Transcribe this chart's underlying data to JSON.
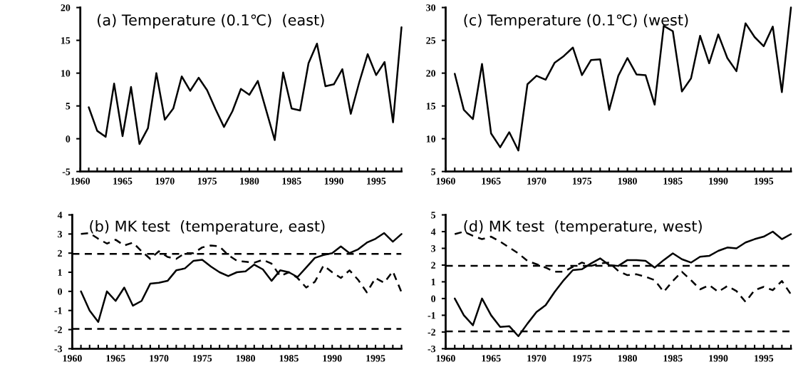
{
  "chart_data": [
    {
      "type": "line",
      "title": "(a) Temperature (0.1℃)  (east)",
      "x": [
        1961,
        1962,
        1963,
        1964,
        1965,
        1966,
        1967,
        1968,
        1969,
        1970,
        1971,
        1972,
        1973,
        1974,
        1975,
        1976,
        1977,
        1978,
        1979,
        1980,
        1981,
        1982,
        1983,
        1984,
        1985,
        1986,
        1987,
        1988,
        1989,
        1990,
        1991,
        1992,
        1993,
        1994,
        1995,
        1996,
        1997,
        1998
      ],
      "series": [
        {
          "color": "#000000",
          "line_style": "solid",
          "values": [
            4.8,
            1.2,
            0.3,
            8.4,
            0.4,
            7.9,
            -0.8,
            1.6,
            10,
            2.9,
            4.6,
            9.5,
            7.3,
            9.3,
            7.4,
            4.5,
            1.8,
            4.2,
            7.6,
            6.7,
            8.8,
            4.3,
            -0.2,
            10.1,
            4.6,
            4.3,
            11.5,
            14.5,
            8.0,
            8.3,
            10.6,
            3.8,
            8.6,
            12.9,
            9.7,
            11.7,
            2.5,
            17.0
          ]
        }
      ],
      "xlim": [
        1960,
        1998
      ],
      "xticks": [
        1960,
        {
          "value": 1961,
          "label": null
        },
        {
          "value": 1962,
          "label": null
        },
        {
          "value": 1963,
          "label": null
        },
        {
          "value": 1964,
          "label": null
        },
        1965,
        {
          "value": 1966,
          "label": null
        },
        {
          "value": 1967,
          "label": null
        },
        {
          "value": 1968,
          "label": null
        },
        {
          "value": 1969,
          "label": null
        },
        1970,
        {
          "value": 1971,
          "label": null
        },
        {
          "value": 1972,
          "label": null
        },
        {
          "value": 1973,
          "label": null
        },
        {
          "value": 1974,
          "label": null
        },
        1975,
        {
          "value": 1976,
          "label": null
        },
        {
          "value": 1977,
          "label": null
        },
        {
          "value": 1978,
          "label": null
        },
        {
          "value": 1979,
          "label": null
        },
        1980,
        {
          "value": 1981,
          "label": null
        },
        {
          "value": 1982,
          "label": null
        },
        {
          "value": 1983,
          "label": null
        },
        {
          "value": 1984,
          "label": null
        },
        1985,
        {
          "value": 1986,
          "label": null
        },
        {
          "value": 1987,
          "label": null
        },
        {
          "value": 1988,
          "label": null
        },
        {
          "value": 1989,
          "label": null
        },
        1990,
        {
          "value": 1991,
          "label": null
        },
        {
          "value": 1992,
          "label": null
        },
        {
          "value": 1993,
          "label": null
        },
        {
          "value": 1994,
          "label": null
        },
        1995,
        {
          "value": 1996,
          "label": null
        },
        {
          "value": 1997,
          "label": null
        },
        {
          "value": 1998,
          "label": null
        }
      ],
      "ylim": [
        -5,
        20
      ],
      "yticks": [
        -5,
        0,
        5,
        10,
        15,
        20
      ],
      "grid": false,
      "legend": false,
      "marker": "none"
    },
    {
      "type": "line",
      "title": "(c) Temperature (0.1℃) (west)",
      "x": [
        1961,
        1962,
        1963,
        1964,
        1965,
        1966,
        1967,
        1968,
        1969,
        1970,
        1971,
        1972,
        1973,
        1974,
        1975,
        1976,
        1977,
        1978,
        1979,
        1980,
        1981,
        1982,
        1983,
        1984,
        1985,
        1986,
        1987,
        1988,
        1989,
        1990,
        1991,
        1992,
        1993,
        1994,
        1995,
        1996,
        1997,
        1998
      ],
      "series": [
        {
          "color": "#000000",
          "line_style": "solid",
          "values": [
            19.9,
            14.4,
            13.0,
            21.4,
            10.8,
            8.7,
            11.0,
            8.2,
            18.3,
            19.6,
            19.0,
            21.6,
            22.6,
            23.9,
            19.7,
            22.0,
            22.1,
            14.4,
            19.6,
            22.3,
            19.8,
            19.7,
            15.2,
            27.2,
            26.4,
            17.2,
            19.2,
            25.7,
            21.5,
            25.9,
            22.3,
            20.3,
            27.6,
            25.5,
            24.1,
            27.1,
            17.1,
            30.0
          ]
        }
      ],
      "xlim": [
        1960,
        1998
      ],
      "xticks": [
        1960,
        {
          "value": 1961,
          "label": null
        },
        {
          "value": 1962,
          "label": null
        },
        {
          "value": 1963,
          "label": null
        },
        {
          "value": 1964,
          "label": null
        },
        1965,
        {
          "value": 1966,
          "label": null
        },
        {
          "value": 1967,
          "label": null
        },
        {
          "value": 1968,
          "label": null
        },
        {
          "value": 1969,
          "label": null
        },
        1970,
        {
          "value": 1971,
          "label": null
        },
        {
          "value": 1972,
          "label": null
        },
        {
          "value": 1973,
          "label": null
        },
        {
          "value": 1974,
          "label": null
        },
        1975,
        {
          "value": 1976,
          "label": null
        },
        {
          "value": 1977,
          "label": null
        },
        {
          "value": 1978,
          "label": null
        },
        {
          "value": 1979,
          "label": null
        },
        1980,
        {
          "value": 1981,
          "label": null
        },
        {
          "value": 1982,
          "label": null
        },
        {
          "value": 1983,
          "label": null
        },
        {
          "value": 1984,
          "label": null
        },
        1985,
        {
          "value": 1986,
          "label": null
        },
        {
          "value": 1987,
          "label": null
        },
        {
          "value": 1988,
          "label": null
        },
        {
          "value": 1989,
          "label": null
        },
        1990,
        {
          "value": 1991,
          "label": null
        },
        {
          "value": 1992,
          "label": null
        },
        {
          "value": 1993,
          "label": null
        },
        {
          "value": 1994,
          "label": null
        },
        1995,
        {
          "value": 1996,
          "label": null
        },
        {
          "value": 1997,
          "label": null
        },
        {
          "value": 1998,
          "label": null
        }
      ],
      "ylim": [
        5,
        30
      ],
      "yticks": [
        5,
        10,
        15,
        20,
        25,
        30
      ],
      "grid": false,
      "legend": false,
      "marker": "none"
    },
    {
      "type": "line",
      "title": "(b) MK test  (temperature, east)",
      "x": [
        1961,
        1962,
        1963,
        1964,
        1965,
        1966,
        1967,
        1968,
        1969,
        1970,
        1971,
        1972,
        1973,
        1974,
        1975,
        1976,
        1977,
        1978,
        1979,
        1980,
        1981,
        1982,
        1983,
        1984,
        1985,
        1986,
        1987,
        1988,
        1989,
        1990,
        1991,
        1992,
        1993,
        1994,
        1995,
        1996,
        1997,
        1998
      ],
      "series": [
        {
          "color": "#000000",
          "line_style": "solid",
          "values": [
            0,
            -1.0,
            -1.6,
            0,
            -0.5,
            0.2,
            -0.75,
            -0.5,
            0.4,
            0.45,
            0.55,
            1.1,
            1.2,
            1.6,
            1.65,
            1.3,
            1.0,
            0.8,
            1.0,
            1.05,
            1.4,
            1.15,
            0.55,
            1.1,
            1.0,
            0.75,
            1.25,
            1.75,
            1.9,
            2.0,
            2.35,
            2.0,
            2.2,
            2.55,
            2.75,
            3.05,
            2.6,
            3.0
          ]
        },
        {
          "color": "#000000",
          "line_style": "dashed",
          "values": [
            3.0,
            3.05,
            2.75,
            2.5,
            2.7,
            2.4,
            2.55,
            2.1,
            1.7,
            2.1,
            1.8,
            1.7,
            2.0,
            2.0,
            2.3,
            2.4,
            2.35,
            1.9,
            1.6,
            1.55,
            1.5,
            1.65,
            1.45,
            0.8,
            1.0,
            0.7,
            0.2,
            0.5,
            1.35,
            1.0,
            0.7,
            1.1,
            0.6,
            -0.05,
            0.7,
            0.45,
            1.05,
            -0.05
          ]
        }
      ],
      "ref_lines": [
        {
          "axis": "y",
          "value": 1.96,
          "color": "#000000",
          "line_style": "dashed"
        },
        {
          "axis": "y",
          "value": -1.96,
          "color": "#000000",
          "line_style": "dashed"
        }
      ],
      "xlim": [
        1960,
        1998
      ],
      "xticks": [
        1960,
        {
          "value": 1961,
          "label": null
        },
        {
          "value": 1962,
          "label": null
        },
        {
          "value": 1963,
          "label": null
        },
        {
          "value": 1964,
          "label": null
        },
        1965,
        {
          "value": 1966,
          "label": null
        },
        {
          "value": 1967,
          "label": null
        },
        {
          "value": 1968,
          "label": null
        },
        {
          "value": 1969,
          "label": null
        },
        1970,
        {
          "value": 1971,
          "label": null
        },
        {
          "value": 1972,
          "label": null
        },
        {
          "value": 1973,
          "label": null
        },
        {
          "value": 1974,
          "label": null
        },
        1975,
        {
          "value": 1976,
          "label": null
        },
        {
          "value": 1977,
          "label": null
        },
        {
          "value": 1978,
          "label": null
        },
        {
          "value": 1979,
          "label": null
        },
        1980,
        {
          "value": 1981,
          "label": null
        },
        {
          "value": 1982,
          "label": null
        },
        {
          "value": 1983,
          "label": null
        },
        {
          "value": 1984,
          "label": null
        },
        1985,
        {
          "value": 1986,
          "label": null
        },
        {
          "value": 1987,
          "label": null
        },
        {
          "value": 1988,
          "label": null
        },
        {
          "value": 1989,
          "label": null
        },
        1990,
        {
          "value": 1991,
          "label": null
        },
        {
          "value": 1992,
          "label": null
        },
        {
          "value": 1993,
          "label": null
        },
        {
          "value": 1994,
          "label": null
        },
        1995,
        {
          "value": 1996,
          "label": null
        },
        {
          "value": 1997,
          "label": null
        },
        {
          "value": 1998,
          "label": null
        }
      ],
      "ylim": [
        -3,
        4
      ],
      "yticks": [
        -3,
        -2,
        -1,
        0,
        1,
        2,
        3,
        4
      ],
      "grid": false,
      "legend": false,
      "marker": "none"
    },
    {
      "type": "line",
      "title": "(d) MK test  (temperature, west)",
      "x": [
        1961,
        1962,
        1963,
        1964,
        1965,
        1966,
        1967,
        1968,
        1969,
        1970,
        1971,
        1972,
        1973,
        1974,
        1975,
        1976,
        1977,
        1978,
        1979,
        1980,
        1981,
        1982,
        1983,
        1984,
        1985,
        1986,
        1987,
        1988,
        1989,
        1990,
        1991,
        1992,
        1993,
        1994,
        1995,
        1996,
        1997,
        1998
      ],
      "series": [
        {
          "color": "#000000",
          "line_style": "solid",
          "values": [
            0,
            -1.0,
            -1.6,
            0,
            -1.0,
            -1.7,
            -1.65,
            -2.25,
            -1.5,
            -0.8,
            -0.4,
            0.4,
            1.1,
            1.7,
            1.75,
            2.1,
            2.4,
            2.0,
            1.95,
            2.3,
            2.3,
            2.25,
            1.85,
            2.3,
            2.7,
            2.35,
            2.15,
            2.5,
            2.55,
            2.85,
            3.05,
            3.0,
            3.35,
            3.55,
            3.7,
            4.0,
            3.55,
            3.85
          ]
        },
        {
          "color": "#000000",
          "line_style": "dashed",
          "values": [
            3.85,
            4.0,
            3.75,
            3.55,
            3.7,
            3.4,
            3.05,
            2.7,
            2.25,
            2.05,
            1.85,
            1.6,
            1.6,
            1.9,
            2.15,
            1.95,
            2.1,
            2.15,
            1.65,
            1.4,
            1.45,
            1.3,
            1.1,
            0.4,
            1.05,
            1.6,
            1.1,
            0.55,
            0.8,
            0.4,
            0.75,
            0.45,
            -0.2,
            0.5,
            0.7,
            0.5,
            1.05,
            0.25
          ]
        }
      ],
      "ref_lines": [
        {
          "axis": "y",
          "value": 1.96,
          "color": "#000000",
          "line_style": "dashed"
        },
        {
          "axis": "y",
          "value": -1.96,
          "color": "#000000",
          "line_style": "dashed"
        }
      ],
      "xlim": [
        1960,
        1998
      ],
      "xticks": [
        1960,
        {
          "value": 1961,
          "label": null
        },
        {
          "value": 1962,
          "label": null
        },
        {
          "value": 1963,
          "label": null
        },
        {
          "value": 1964,
          "label": null
        },
        1965,
        {
          "value": 1966,
          "label": null
        },
        {
          "value": 1967,
          "label": null
        },
        {
          "value": 1968,
          "label": null
        },
        {
          "value": 1969,
          "label": null
        },
        1970,
        {
          "value": 1971,
          "label": null
        },
        {
          "value": 1972,
          "label": null
        },
        {
          "value": 1973,
          "label": null
        },
        {
          "value": 1974,
          "label": null
        },
        1975,
        {
          "value": 1976,
          "label": null
        },
        {
          "value": 1977,
          "label": null
        },
        {
          "value": 1978,
          "label": null
        },
        {
          "value": 1979,
          "label": null
        },
        1980,
        {
          "value": 1981,
          "label": null
        },
        {
          "value": 1982,
          "label": null
        },
        {
          "value": 1983,
          "label": null
        },
        {
          "value": 1984,
          "label": null
        },
        1985,
        {
          "value": 1986,
          "label": null
        },
        {
          "value": 1987,
          "label": null
        },
        {
          "value": 1988,
          "label": null
        },
        {
          "value": 1989,
          "label": null
        },
        1990,
        {
          "value": 1991,
          "label": null
        },
        {
          "value": 1992,
          "label": null
        },
        {
          "value": 1993,
          "label": null
        },
        {
          "value": 1994,
          "label": null
        },
        1995,
        {
          "value": 1996,
          "label": null
        },
        {
          "value": 1997,
          "label": null
        },
        {
          "value": 1998,
          "label": null
        }
      ],
      "ylim": [
        -3,
        5
      ],
      "yticks": [
        -3,
        -2,
        -1,
        0,
        1,
        2,
        3,
        4,
        5
      ],
      "grid": false,
      "legend": false,
      "marker": "none"
    }
  ]
}
